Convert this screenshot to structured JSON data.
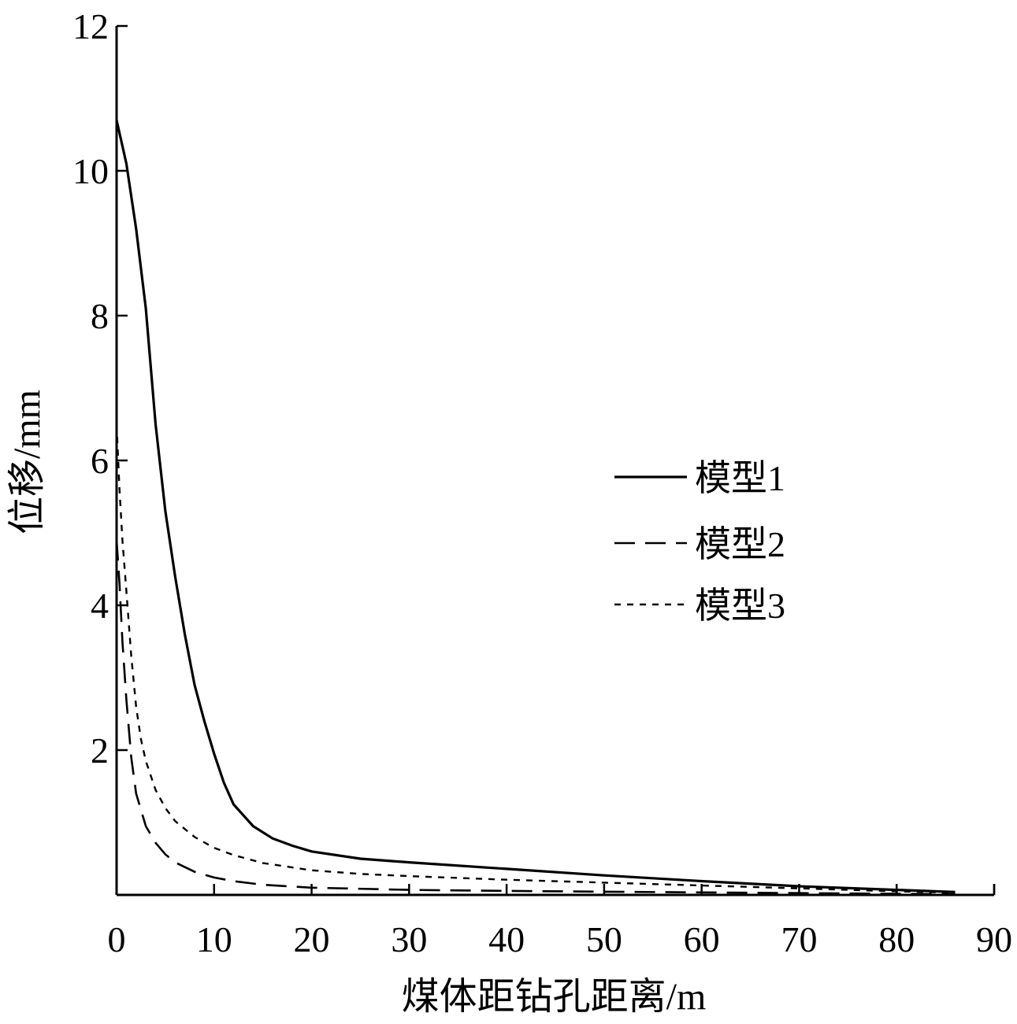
{
  "chart_data": {
    "type": "line",
    "title": "",
    "xlabel": "煤体距钻孔距离/m",
    "ylabel": "位移/mm",
    "xlim": [
      0,
      90
    ],
    "ylim": [
      0,
      12
    ],
    "xticks": [
      0,
      10,
      20,
      30,
      40,
      50,
      60,
      70,
      80,
      90
    ],
    "yticks": [
      2,
      4,
      6,
      8,
      10,
      12
    ],
    "grid": false,
    "legend_position": "center-right",
    "series": [
      {
        "name": "模型1",
        "line_style": "solid",
        "x": [
          0,
          1,
          2,
          3,
          4,
          5,
          6,
          7,
          8,
          9,
          10,
          11,
          12,
          14,
          16,
          18,
          20,
          25,
          30,
          40,
          50,
          60,
          70,
          80,
          86
        ],
        "y": [
          10.7,
          10.1,
          9.2,
          8.1,
          6.5,
          5.3,
          4.4,
          3.6,
          2.9,
          2.4,
          1.95,
          1.55,
          1.25,
          0.95,
          0.78,
          0.68,
          0.6,
          0.5,
          0.45,
          0.36,
          0.27,
          0.19,
          0.12,
          0.07,
          0.04
        ]
      },
      {
        "name": "模型2",
        "line_style": "dashed",
        "x": [
          0,
          0.3,
          0.6,
          1,
          1.5,
          2,
          3,
          4,
          5,
          6,
          8,
          10,
          12,
          15,
          20,
          30,
          40,
          50,
          60,
          70,
          80,
          86
        ],
        "y": [
          4.9,
          4.3,
          3.5,
          2.7,
          1.9,
          1.4,
          0.95,
          0.72,
          0.56,
          0.45,
          0.32,
          0.24,
          0.19,
          0.14,
          0.1,
          0.07,
          0.055,
          0.045,
          0.035,
          0.025,
          0.015,
          0.01
        ]
      },
      {
        "name": "模型3",
        "line_style": "dotted",
        "x": [
          0,
          0.3,
          0.6,
          1,
          1.5,
          2,
          2.5,
          3,
          4,
          5,
          6,
          8,
          10,
          12,
          15,
          20,
          25,
          30,
          40,
          50,
          60,
          70,
          80,
          86
        ],
        "y": [
          6.5,
          5.6,
          4.9,
          4.2,
          3.3,
          2.6,
          2.15,
          1.85,
          1.45,
          1.2,
          1.02,
          0.8,
          0.65,
          0.55,
          0.44,
          0.34,
          0.29,
          0.26,
          0.21,
          0.17,
          0.13,
          0.09,
          0.05,
          0.03
        ]
      }
    ]
  }
}
